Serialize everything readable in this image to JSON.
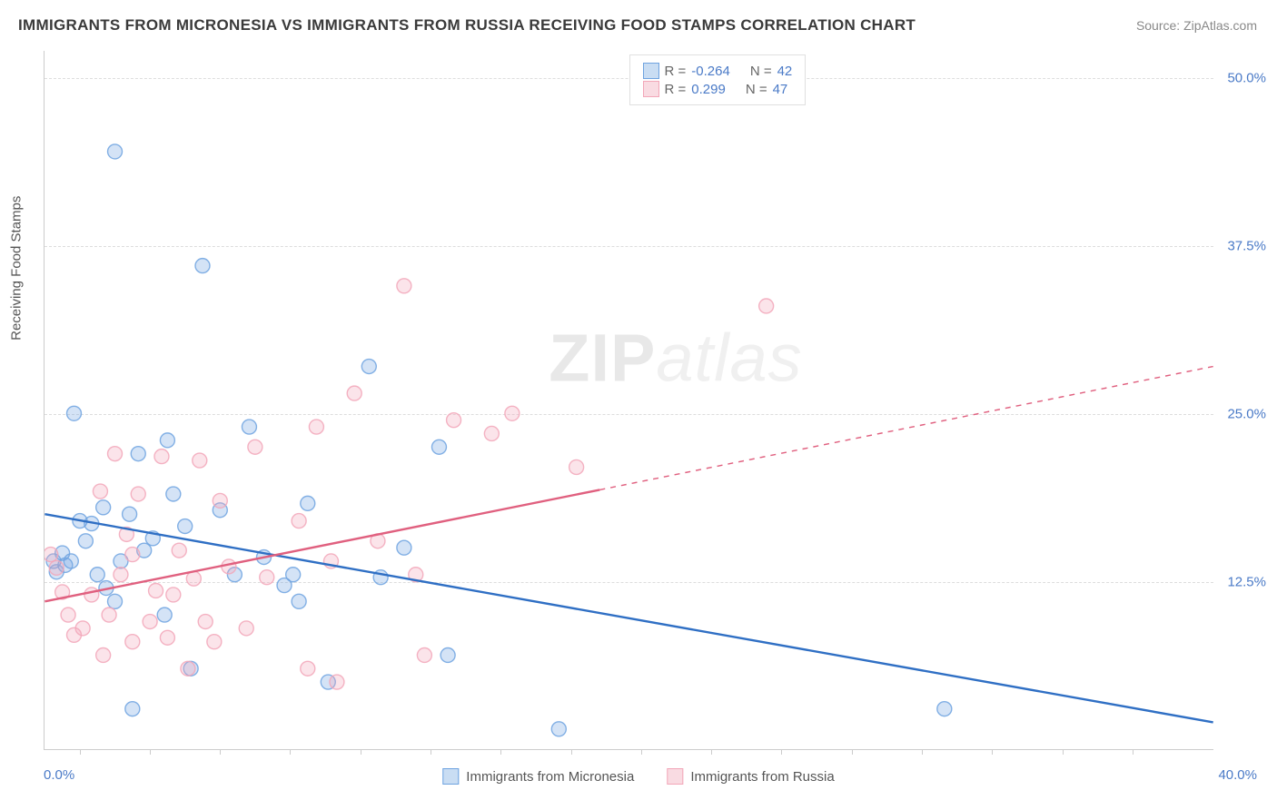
{
  "title": "IMMIGRANTS FROM MICRONESIA VS IMMIGRANTS FROM RUSSIA RECEIVING FOOD STAMPS CORRELATION CHART",
  "source": "Source: ZipAtlas.com",
  "yAxisLabel": "Receiving Food Stamps",
  "watermark": {
    "part1": "ZIP",
    "part2": "atlas"
  },
  "chart": {
    "type": "scatter",
    "xlim": [
      0,
      40
    ],
    "ylim": [
      0,
      52
    ],
    "xtick_first": "0.0%",
    "xtick_last": "40.0%",
    "xtick_positions_pct": [
      3.0,
      9.0,
      15.0,
      21.0,
      27.0,
      33.0,
      39.0,
      45.0,
      51.0,
      57.0,
      63.0,
      69.0,
      75.0,
      81.0,
      87.0,
      93.0
    ],
    "yticks": [
      {
        "v": 12.5,
        "label": "12.5%"
      },
      {
        "v": 25.0,
        "label": "25.0%"
      },
      {
        "v": 37.5,
        "label": "37.5%"
      },
      {
        "v": 50.0,
        "label": "50.0%"
      }
    ],
    "background_color": "#ffffff",
    "grid_color": "#dddddd",
    "axis_color": "#cccccc",
    "tick_label_color": "#4a7ac7",
    "marker_radius": 8,
    "marker_fill_opacity": 0.3,
    "marker_stroke_opacity": 0.85,
    "marker_stroke_width": 1.4,
    "line_width": 2.4,
    "series": [
      {
        "name": "Immigrants from Micronesia",
        "color": "#6fa3e0",
        "line_color": "#2f6fc4",
        "stats": {
          "R": "-0.264",
          "N": "42"
        },
        "trend": {
          "x1": 0,
          "y1": 17.5,
          "x2": 40,
          "y2": 2.0,
          "solid_until_x": 40
        },
        "points": [
          [
            2.4,
            44.5
          ],
          [
            5.4,
            36.0
          ],
          [
            1.0,
            25.0
          ],
          [
            4.2,
            23.0
          ],
          [
            3.2,
            22.0
          ],
          [
            11.1,
            28.5
          ],
          [
            7.0,
            24.0
          ],
          [
            9.0,
            18.3
          ],
          [
            12.3,
            15.0
          ],
          [
            11.5,
            12.8
          ],
          [
            13.5,
            22.5
          ],
          [
            13.8,
            7.0
          ],
          [
            8.2,
            12.2
          ],
          [
            8.7,
            11.0
          ],
          [
            5.0,
            6.0
          ],
          [
            3.0,
            3.0
          ],
          [
            2.0,
            18.0
          ],
          [
            1.4,
            15.5
          ],
          [
            0.6,
            14.6
          ],
          [
            0.9,
            14.0
          ],
          [
            0.3,
            14.0
          ],
          [
            0.4,
            13.2
          ],
          [
            0.7,
            13.7
          ],
          [
            1.6,
            16.8
          ],
          [
            3.4,
            14.8
          ],
          [
            2.6,
            14.0
          ],
          [
            2.9,
            17.5
          ],
          [
            4.4,
            19.0
          ],
          [
            4.8,
            16.6
          ],
          [
            4.1,
            10.0
          ],
          [
            3.7,
            15.7
          ],
          [
            1.8,
            13.0
          ],
          [
            1.2,
            17.0
          ],
          [
            2.1,
            12.0
          ],
          [
            7.5,
            14.3
          ],
          [
            8.5,
            13.0
          ],
          [
            9.7,
            5.0
          ],
          [
            17.6,
            1.5
          ],
          [
            30.8,
            3.0
          ],
          [
            6.0,
            17.8
          ],
          [
            2.4,
            11.0
          ],
          [
            6.5,
            13.0
          ]
        ]
      },
      {
        "name": "Immigrants from Russia",
        "color": "#f2a6b8",
        "line_color": "#e0607f",
        "stats": {
          "R": " 0.299",
          "N": "47"
        },
        "trend": {
          "x1": 0,
          "y1": 11.0,
          "x2": 40,
          "y2": 28.5,
          "solid_until_x": 19
        },
        "points": [
          [
            12.3,
            34.5
          ],
          [
            24.7,
            33.0
          ],
          [
            16.0,
            25.0
          ],
          [
            15.3,
            23.5
          ],
          [
            18.2,
            21.0
          ],
          [
            10.6,
            26.5
          ],
          [
            9.3,
            24.0
          ],
          [
            7.2,
            22.5
          ],
          [
            5.3,
            21.5
          ],
          [
            4.0,
            21.8
          ],
          [
            3.2,
            19.0
          ],
          [
            2.4,
            22.0
          ],
          [
            1.9,
            19.2
          ],
          [
            1.3,
            9.0
          ],
          [
            1.0,
            8.5
          ],
          [
            0.4,
            13.5
          ],
          [
            0.8,
            10.0
          ],
          [
            2.2,
            10.0
          ],
          [
            2.6,
            13.0
          ],
          [
            3.6,
            9.5
          ],
          [
            3.0,
            8.0
          ],
          [
            4.4,
            11.5
          ],
          [
            4.9,
            6.0
          ],
          [
            5.8,
            8.0
          ],
          [
            5.1,
            12.7
          ],
          [
            6.3,
            13.6
          ],
          [
            6.9,
            9.0
          ],
          [
            5.5,
            9.5
          ],
          [
            4.2,
            8.3
          ],
          [
            3.8,
            11.8
          ],
          [
            3.0,
            14.5
          ],
          [
            7.6,
            12.8
          ],
          [
            9.0,
            6.0
          ],
          [
            10.0,
            5.0
          ],
          [
            9.8,
            14.0
          ],
          [
            12.7,
            13.0
          ],
          [
            13.0,
            7.0
          ],
          [
            14.0,
            24.5
          ],
          [
            0.2,
            14.5
          ],
          [
            2.0,
            7.0
          ],
          [
            2.8,
            16.0
          ],
          [
            1.6,
            11.5
          ],
          [
            4.6,
            14.8
          ],
          [
            6.0,
            18.5
          ],
          [
            8.7,
            17.0
          ],
          [
            11.4,
            15.5
          ],
          [
            0.6,
            11.7
          ]
        ]
      }
    ]
  },
  "legendTop": {
    "rows": [
      {
        "swatch_fill": "#c9ddf3",
        "swatch_border": "#6fa3e0",
        "r_label": "R =",
        "r_val": "-0.264",
        "n_label": "N =",
        "n_val": "42"
      },
      {
        "swatch_fill": "#f9dbe2",
        "swatch_border": "#f2a6b8",
        "r_label": "R =",
        "r_val": " 0.299",
        "n_label": "N =",
        "n_val": "47"
      }
    ]
  },
  "legendBottom": [
    {
      "swatch_fill": "#c9ddf3",
      "swatch_border": "#6fa3e0",
      "label": "Immigrants from Micronesia"
    },
    {
      "swatch_fill": "#f9dbe2",
      "swatch_border": "#f2a6b8",
      "label": "Immigrants from Russia"
    }
  ]
}
